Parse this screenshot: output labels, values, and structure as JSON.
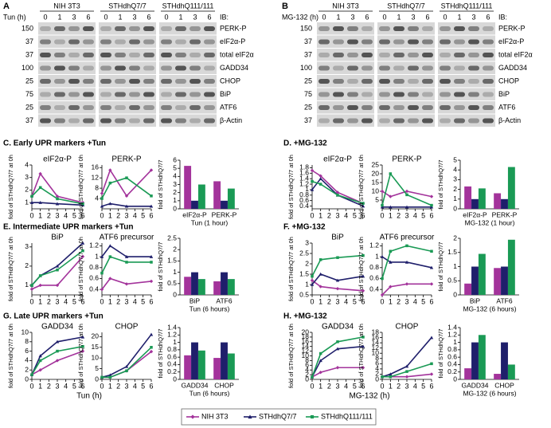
{
  "blots": [
    {
      "letter": "A",
      "treatment": "Tun (h)",
      "groups": [
        "NIH 3T3",
        "STHdhQ7/7",
        "STHdhQ111/111"
      ],
      "lanes": [
        0,
        1,
        3,
        6
      ],
      "ib": "IB:",
      "markers": [
        150,
        37,
        37,
        100,
        25,
        75,
        25,
        37
      ],
      "proteins": [
        "PERK-P",
        "eIF2α-P",
        "total eIF2α",
        "GADD34",
        "CHOP",
        "BiP",
        "ATF6",
        "β-Actin"
      ]
    },
    {
      "letter": "B",
      "treatment": "MG-132 (h)",
      "groups": [
        "NIH 3T3",
        "STHdhQ7/7",
        "STHdhQ111/111"
      ],
      "lanes": [
        0,
        1,
        3,
        6
      ],
      "ib": "IB:",
      "markers": [
        150,
        37,
        37,
        100,
        25,
        75,
        25,
        37
      ],
      "proteins": [
        "PERK-P",
        "eIF2α-P",
        "total eIF2α",
        "GADD34",
        "CHOP",
        "BiP",
        "ATF6",
        "β-Actin"
      ]
    }
  ],
  "panels": [
    {
      "title": "C. Early UPR markers +Tun"
    },
    {
      "title": "D.  +MG-132"
    },
    {
      "title": "E. Intermediate UPR markers +Tun"
    },
    {
      "title": "F. +MG-132"
    },
    {
      "title": "G. Late UPR markers +Tun",
      "xlabel": "Tun (h)"
    },
    {
      "title": "H. +MG-132",
      "xlabel": "MG-132 (h)"
    }
  ],
  "legend": [
    {
      "name": "NIH 3T3",
      "color": "#a3339b",
      "marker": "diamond"
    },
    {
      "name": "STHdhQ7/7",
      "color": "#1f1f6b",
      "marker": "triangle"
    },
    {
      "name": "STHdhQ111/111",
      "color": "#1a9a55",
      "marker": "square"
    }
  ],
  "chart_data": [
    {
      "type": "line",
      "title": "eIF2α-P",
      "ylabel": "fold of STHdhQ7/7 at 0h",
      "x": [
        0,
        1,
        3,
        6
      ],
      "xlim": [
        0,
        6
      ],
      "xticks": [
        0,
        1,
        2,
        3,
        4,
        5,
        6
      ],
      "ylim": [
        0.5,
        4
      ],
      "yticks": [
        1,
        2,
        3,
        4
      ],
      "series": [
        {
          "values": [
            1.5,
            3.3,
            1.5,
            1
          ]
        },
        {
          "values": [
            1,
            1,
            0.9,
            0.8
          ]
        },
        {
          "values": [
            1.5,
            2.2,
            1.3,
            0.9
          ]
        }
      ]
    },
    {
      "type": "line",
      "title": "PERK-P",
      "ylabel": "fold of STHdhQ7/7 at 0h",
      "x": [
        0,
        1,
        3,
        6
      ],
      "xlim": [
        0,
        6
      ],
      "xticks": [
        0,
        1,
        2,
        3,
        4,
        5,
        6
      ],
      "ylim": [
        0,
        17
      ],
      "yticks": [
        4,
        8,
        12,
        16
      ],
      "series": [
        {
          "values": [
            6,
            15,
            5,
            15
          ]
        },
        {
          "values": [
            1,
            2,
            1,
            1
          ]
        },
        {
          "values": [
            4,
            10,
            12,
            5
          ]
        }
      ]
    },
    {
      "type": "bar",
      "xlabel": "Tun (1 hour)",
      "ylabel": "fold of STHdhQ7/7",
      "categories": [
        "eIF2α-P",
        "PERK-P"
      ],
      "ylim": [
        0,
        6
      ],
      "yticks": [
        0,
        1,
        2,
        3,
        4,
        5,
        6
      ],
      "series": [
        {
          "values": [
            5.3,
            3.4
          ]
        },
        {
          "values": [
            1,
            1
          ]
        },
        {
          "values": [
            3,
            2.5
          ]
        }
      ]
    },
    {
      "type": "line",
      "title": "eIF2α-P",
      "ylabel": "fold of STHdhQ7/7 at 0h",
      "x": [
        0,
        1,
        3,
        6
      ],
      "xlim": [
        0,
        6
      ],
      "xticks": [
        0,
        1,
        2,
        3,
        4,
        5,
        6
      ],
      "ylim": [
        0.3,
        1.9
      ],
      "yticks": [
        0.4,
        0.6,
        0.8,
        1,
        1.2,
        1.4,
        1.6,
        1.8
      ],
      "series": [
        {
          "values": [
            1.7,
            1.5,
            0.9,
            0.5
          ]
        },
        {
          "values": [
            1,
            1.4,
            0.8,
            0.4
          ]
        },
        {
          "values": [
            1.3,
            1.2,
            0.8,
            0.5
          ]
        }
      ]
    },
    {
      "type": "line",
      "title": "PERK-P",
      "ylabel": "fold of STHdhQ7/7 at 0h",
      "x": [
        0,
        1,
        3,
        6
      ],
      "xlim": [
        0,
        6
      ],
      "xticks": [
        0,
        1,
        2,
        3,
        4,
        5,
        6
      ],
      "ylim": [
        0,
        25
      ],
      "yticks": [
        5,
        10,
        15,
        20,
        25
      ],
      "series": [
        {
          "values": [
            10,
            7,
            10,
            7
          ]
        },
        {
          "values": [
            1,
            1,
            1,
            1
          ]
        },
        {
          "values": [
            2,
            20,
            8,
            2
          ]
        }
      ]
    },
    {
      "type": "bar",
      "xlabel": "MG-132 (1 hour)",
      "ylabel": "fold of STHdhQ7/7",
      "categories": [
        "eIF2α-P",
        "PERK-P"
      ],
      "ylim": [
        0,
        5
      ],
      "yticks": [
        0,
        1,
        2,
        3,
        4,
        5
      ],
      "series": [
        {
          "values": [
            2.3,
            1.6
          ]
        },
        {
          "values": [
            1,
            1
          ]
        },
        {
          "values": [
            2.1,
            4.3
          ]
        }
      ]
    },
    {
      "type": "line",
      "title": "BiP",
      "ylabel": "fold of STHdhQ7/7 at 0h",
      "x": [
        0,
        1,
        3,
        6
      ],
      "xlim": [
        0,
        6
      ],
      "xticks": [
        0,
        1,
        2,
        3,
        4,
        5,
        6
      ],
      "ylim": [
        0.5,
        3.2
      ],
      "yticks": [
        1,
        2,
        3
      ],
      "series": [
        {
          "values": [
            0.8,
            1,
            1,
            2.5
          ]
        },
        {
          "values": [
            1,
            1.5,
            2,
            3.2
          ]
        },
        {
          "values": [
            1,
            1.5,
            1.8,
            2.8
          ]
        }
      ]
    },
    {
      "type": "line",
      "title": "ATF6 precursor",
      "ylabel": "fold of STHdhQ7/7 at 0h",
      "x": [
        0,
        1,
        3,
        6
      ],
      "xlim": [
        0,
        6
      ],
      "xticks": [
        0,
        1,
        2,
        3,
        4,
        5,
        6
      ],
      "ylim": [
        0.3,
        1.25
      ],
      "yticks": [
        0.4,
        0.6,
        0.8,
        1,
        1.2
      ],
      "series": [
        {
          "values": [
            0.4,
            0.6,
            0.5,
            0.55
          ]
        },
        {
          "values": [
            1,
            1.2,
            1,
            1
          ]
        },
        {
          "values": [
            0.7,
            1,
            0.9,
            0.9
          ]
        }
      ]
    },
    {
      "type": "bar",
      "xlabel": "Tun (6 hours)",
      "ylabel": "fold of STHdhQ7/7",
      "categories": [
        "BiP",
        "ATF6"
      ],
      "ylim": [
        0,
        2.5
      ],
      "yticks": [
        0,
        0.5,
        1,
        1.5,
        2,
        2.5
      ],
      "series": [
        {
          "values": [
            0.8,
            0.6
          ]
        },
        {
          "values": [
            1,
            1
          ]
        },
        {
          "values": [
            0.7,
            0.7
          ]
        }
      ]
    },
    {
      "type": "line",
      "title": "BiP",
      "ylabel": "fold of STHdhQ7/7 at 0h",
      "x": [
        0,
        1,
        3,
        6
      ],
      "xlim": [
        0,
        6
      ],
      "xticks": [
        0,
        1,
        2,
        3,
        4,
        5,
        6
      ],
      "ylim": [
        0.5,
        3
      ],
      "yticks": [
        0.5,
        1,
        1.5,
        2,
        2.5,
        3
      ],
      "series": [
        {
          "values": [
            1.2,
            0.9,
            0.8,
            0.7
          ]
        },
        {
          "values": [
            1,
            1.5,
            1.2,
            1.4
          ]
        },
        {
          "values": [
            1.4,
            2.2,
            2.3,
            2.4
          ]
        }
      ]
    },
    {
      "type": "line",
      "title": "ATF6 precursor",
      "ylabel": "fold of STHdhQ7/7 at 0h",
      "x": [
        0,
        1,
        3,
        6
      ],
      "xlim": [
        0,
        6
      ],
      "xticks": [
        0,
        1,
        2,
        3,
        4,
        5,
        6
      ],
      "ylim": [
        0.3,
        1.25
      ],
      "yticks": [
        0.4,
        0.6,
        0.8,
        1,
        1.2
      ],
      "series": [
        {
          "values": [
            0.3,
            0.45,
            0.5,
            0.5
          ]
        },
        {
          "values": [
            1,
            0.9,
            0.9,
            0.8
          ]
        },
        {
          "values": [
            0.6,
            1.1,
            1.2,
            1.1
          ]
        }
      ]
    },
    {
      "type": "bar",
      "xlabel": "MG-132 (6 hours)",
      "ylabel": "fold of STHdhQ7/7",
      "categories": [
        "BiP",
        "ATF6"
      ],
      "ylim": [
        0,
        2
      ],
      "yticks": [
        0,
        0.5,
        1,
        1.5,
        2
      ],
      "series": [
        {
          "values": [
            0.4,
            0.95
          ]
        },
        {
          "values": [
            1,
            1
          ]
        },
        {
          "values": [
            1.45,
            1.95
          ]
        }
      ]
    },
    {
      "type": "line",
      "title": "GADD34",
      "ylabel": "fold of STHdhQ7/7 at 0h",
      "x": [
        0,
        1,
        3,
        6
      ],
      "xlim": [
        0,
        6
      ],
      "xticks": [
        0,
        1,
        2,
        3,
        4,
        5,
        6
      ],
      "ylim": [
        0,
        10
      ],
      "yticks": [
        0,
        2,
        4,
        6,
        8,
        10
      ],
      "series": [
        {
          "values": [
            1,
            2,
            4,
            6
          ]
        },
        {
          "values": [
            1,
            5,
            8,
            9
          ]
        },
        {
          "values": [
            1,
            4,
            6,
            7
          ]
        }
      ]
    },
    {
      "type": "line",
      "title": "CHOP",
      "ylabel": "fold of STHdhQ7/7 at 0h",
      "x": [
        0,
        1,
        3,
        6
      ],
      "xlim": [
        0,
        6
      ],
      "xticks": [
        0,
        1,
        2,
        3,
        4,
        5,
        6
      ],
      "ylim": [
        0,
        22
      ],
      "yticks": [
        0,
        5,
        10,
        15,
        20
      ],
      "series": [
        {
          "values": [
            1,
            1,
            4,
            13
          ]
        },
        {
          "values": [
            1,
            2,
            6,
            21
          ]
        },
        {
          "values": [
            1,
            1,
            4,
            15
          ]
        }
      ]
    },
    {
      "type": "bar",
      "xlabel": "Tun (6 hours)",
      "ylabel": "fold of STHdhQ7/7",
      "categories": [
        "GADD34",
        "CHOP"
      ],
      "ylim": [
        0,
        1.4
      ],
      "yticks": [
        0,
        0.2,
        0.4,
        0.6,
        0.8,
        1,
        1.2,
        1.4
      ],
      "series": [
        {
          "values": [
            0.65,
            0.58
          ]
        },
        {
          "values": [
            1,
            1
          ]
        },
        {
          "values": [
            0.78,
            0.7
          ]
        }
      ]
    },
    {
      "type": "line",
      "title": "GADD34",
      "ylabel": "fold of STHdhQ7/7 at 0h",
      "x": [
        0,
        1,
        3,
        6
      ],
      "xlim": [
        0,
        6
      ],
      "xticks": [
        0,
        1,
        2,
        3,
        4,
        5,
        6
      ],
      "ylim": [
        0,
        20
      ],
      "yticks": [
        0,
        2,
        4,
        6,
        8,
        10,
        12,
        14,
        16,
        18,
        20
      ],
      "series": [
        {
          "values": [
            1,
            3,
            5,
            5
          ]
        },
        {
          "values": [
            1,
            8,
            13,
            14
          ]
        },
        {
          "values": [
            1,
            11,
            16,
            18
          ]
        }
      ]
    },
    {
      "type": "line",
      "title": "CHOP",
      "ylabel": "fold of STHdhQ7/7 at 0h",
      "x": [
        0,
        1,
        3,
        6
      ],
      "xlim": [
        0,
        6
      ],
      "xticks": [
        0,
        1,
        2,
        3,
        4,
        5,
        6
      ],
      "ylim": [
        0,
        18
      ],
      "yticks": [
        0,
        2,
        4,
        6,
        8,
        10,
        12,
        14,
        16,
        18
      ],
      "series": [
        {
          "values": [
            1,
            1,
            1,
            2
          ]
        },
        {
          "values": [
            1,
            2,
            5,
            16
          ]
        },
        {
          "values": [
            1,
            1,
            3,
            6
          ]
        }
      ]
    },
    {
      "type": "bar",
      "xlabel": "MG-132 (6 hours)",
      "ylabel": "fold of STHdhQ7/7",
      "categories": [
        "GADD34",
        "CHOP"
      ],
      "ylim": [
        0,
        1.4
      ],
      "yticks": [
        0,
        0.2,
        0.4,
        0.6,
        0.8,
        1,
        1.2,
        1.4
      ],
      "series": [
        {
          "values": [
            0.3,
            0.15
          ]
        },
        {
          "values": [
            1,
            1
          ]
        },
        {
          "values": [
            1.2,
            0.4
          ]
        }
      ]
    }
  ]
}
